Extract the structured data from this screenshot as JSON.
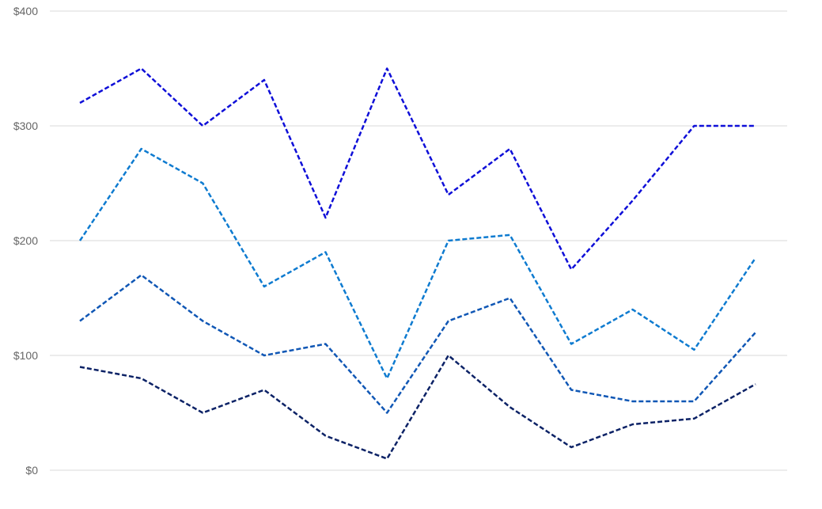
{
  "chart_data": {
    "type": "line",
    "title": "",
    "xlabel": "",
    "ylabel": "",
    "ylim": [
      0,
      400
    ],
    "yticks": [
      0,
      100,
      200,
      300,
      400
    ],
    "ytick_labels": [
      "$0",
      "$100",
      "$200",
      "$300",
      "$400"
    ],
    "x": [
      1,
      2,
      3,
      4,
      5,
      6,
      7,
      8,
      9,
      10,
      11,
      12
    ],
    "grid": true,
    "legend": "none",
    "line_style": "dashed",
    "series": [
      {
        "color": "#0f0fd8",
        "values": [
          320,
          350,
          300,
          340,
          220,
          350,
          240,
          280,
          175,
          235,
          300,
          300
        ]
      },
      {
        "color": "#0e7bd0",
        "values": [
          200,
          280,
          250,
          160,
          190,
          80,
          200,
          205,
          110,
          140,
          105,
          185
        ]
      },
      {
        "color": "#1057b5",
        "values": [
          130,
          170,
          130,
          100,
          110,
          50,
          130,
          150,
          70,
          60,
          60,
          120
        ]
      },
      {
        "color": "#0c2266",
        "values": [
          90,
          80,
          50,
          70,
          30,
          10,
          100,
          55,
          20,
          40,
          45,
          75
        ]
      }
    ]
  }
}
